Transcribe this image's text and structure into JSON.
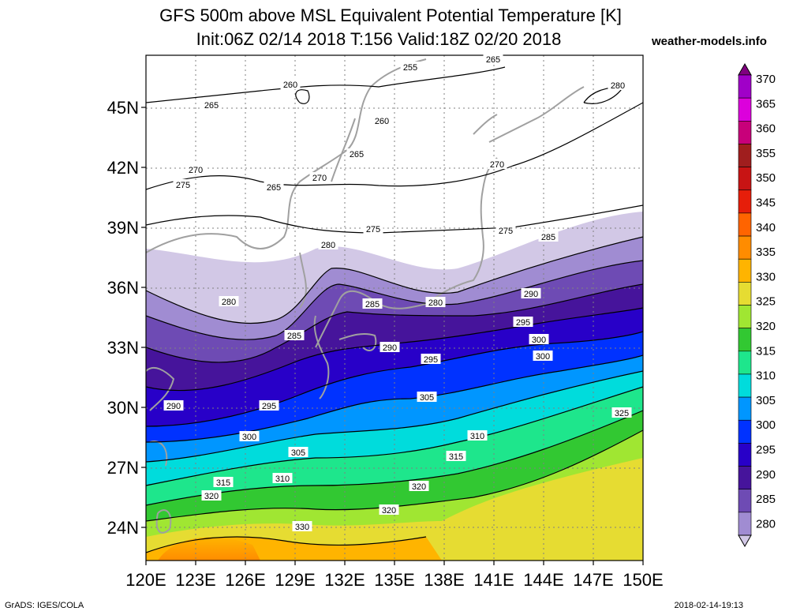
{
  "title_line1": "GFS 500m above MSL Equivalent Potential Temperature [K]",
  "title_line2": "Init:06Z 02/14 2018 T:156 Valid:18Z 02/20 2018",
  "brand": "weather-models.info",
  "footer_left": "GrADS: IGES/COLA",
  "footer_right": "2018-02-14-19:13",
  "map": {
    "lon_ticks": [
      "120E",
      "123E",
      "126E",
      "129E",
      "132E",
      "135E",
      "138E",
      "141E",
      "144E",
      "147E",
      "150E"
    ],
    "lat_ticks": [
      "24N",
      "27N",
      "30N",
      "33N",
      "36N",
      "39N",
      "42N",
      "45N"
    ],
    "contour_labels": [
      "255",
      "260",
      "260",
      "265",
      "265",
      "265",
      "265",
      "270",
      "270",
      "270",
      "275",
      "275",
      "275",
      "280",
      "280",
      "280",
      "280",
      "285",
      "285",
      "285",
      "290",
      "290",
      "290",
      "295",
      "295",
      "295",
      "300",
      "300",
      "300",
      "305",
      "305",
      "310",
      "310",
      "315",
      "315",
      "320",
      "320",
      "320",
      "325",
      "330"
    ]
  },
  "colorbar": {
    "levels": [
      "370",
      "365",
      "360",
      "355",
      "350",
      "345",
      "340",
      "335",
      "330",
      "325",
      "320",
      "315",
      "310",
      "305",
      "300",
      "295",
      "290",
      "285",
      "280"
    ],
    "colors": [
      "#800080",
      "#a000c8",
      "#dc00dc",
      "#c8007a",
      "#a01e1e",
      "#c81414",
      "#e61e0a",
      "#ff6400",
      "#ff8c00",
      "#ffb400",
      "#e6dc32",
      "#a0e632",
      "#32c832",
      "#1ee68c",
      "#00dcdc",
      "#0096ff",
      "#0032ff",
      "#2800c8",
      "#46149b",
      "#6e4bb4",
      "#a08cd2",
      "#d2c8e6"
    ]
  }
}
